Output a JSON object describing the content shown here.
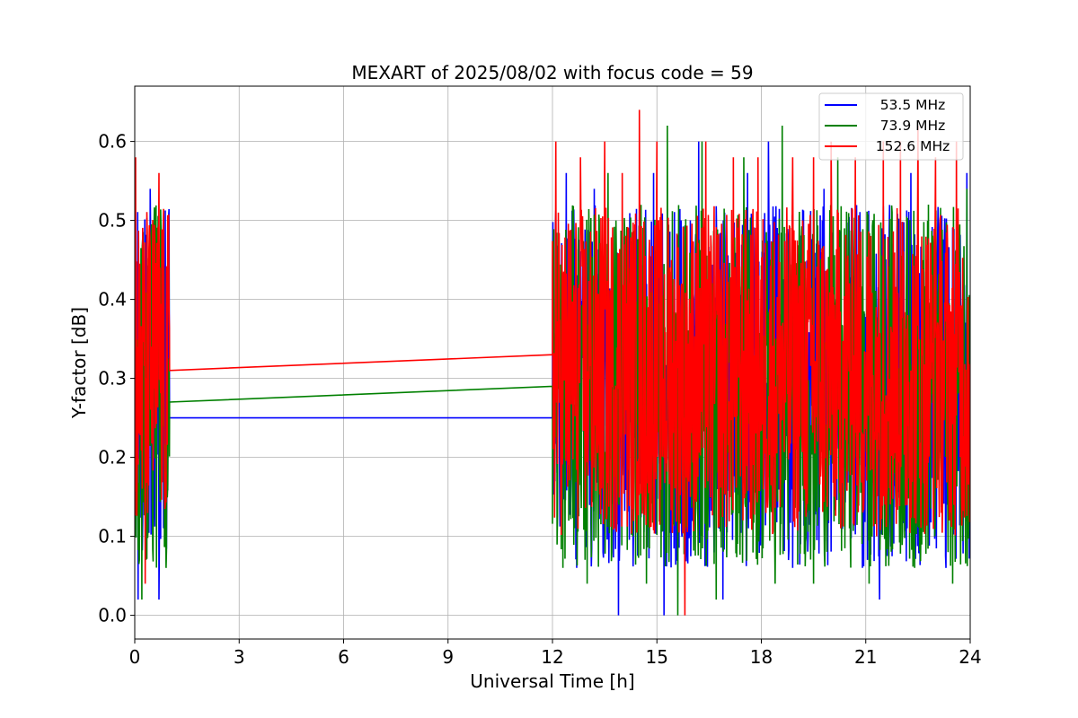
{
  "chart_data": {
    "type": "line",
    "title": "MEXART of 2025/08/02 with focus code = 59",
    "xlabel": "Universal Time [h]",
    "ylabel": "Y-factor [dB]",
    "xlim": [
      0,
      24
    ],
    "ylim": [
      -0.03,
      0.67
    ],
    "x_ticks": [
      0,
      3,
      6,
      9,
      12,
      15,
      18,
      21,
      24
    ],
    "x_tick_labels": [
      "0",
      "3",
      "6",
      "9",
      "12",
      "15",
      "18",
      "21",
      "24"
    ],
    "y_ticks": [
      0.0,
      0.1,
      0.2,
      0.3,
      0.4,
      0.5,
      0.6
    ],
    "y_tick_labels": [
      "0.0",
      "0.1",
      "0.2",
      "0.3",
      "0.4",
      "0.5",
      "0.6"
    ],
    "grid": true,
    "legend_position": "top-right",
    "segments": [
      {
        "x_start": 0,
        "x_end": 1
      },
      {
        "x_start": 12,
        "x_end": 24
      }
    ],
    "series": [
      {
        "name": "53.5 MHz",
        "color": "#0000ff",
        "typical_min": 0.06,
        "typical_max": 0.52,
        "segment1_spikes": [
          [
            0.45,
            0.54
          ],
          [
            0.1,
            0.02
          ],
          [
            0.7,
            0.02
          ]
        ],
        "segment2_spikes": [
          [
            12.4,
            0.56
          ],
          [
            12.7,
            0.06
          ],
          [
            13.2,
            0.54
          ],
          [
            13.9,
            0.0
          ],
          [
            14.9,
            0.56
          ],
          [
            15.2,
            0.0
          ],
          [
            16.2,
            0.6
          ],
          [
            16.9,
            0.02
          ],
          [
            17.6,
            0.56
          ],
          [
            18.2,
            0.6
          ],
          [
            18.9,
            0.06
          ],
          [
            19.8,
            0.54
          ],
          [
            20.9,
            0.06
          ],
          [
            21.4,
            0.02
          ],
          [
            22.3,
            0.56
          ],
          [
            23.3,
            0.06
          ],
          [
            23.9,
            0.56
          ]
        ],
        "gap_bridge": [
          [
            1.0,
            0.25
          ],
          [
            12.0,
            0.25
          ]
        ]
      },
      {
        "name": "73.9 MHz",
        "color": "#008000",
        "typical_min": 0.06,
        "typical_max": 0.52,
        "segment1_spikes": [
          [
            0.2,
            0.02
          ],
          [
            0.6,
            0.5
          ],
          [
            0.9,
            0.06
          ]
        ],
        "segment2_spikes": [
          [
            12.3,
            0.06
          ],
          [
            13.0,
            0.04
          ],
          [
            13.6,
            0.56
          ],
          [
            14.3,
            0.1
          ],
          [
            14.7,
            0.04
          ],
          [
            15.3,
            0.62
          ],
          [
            15.6,
            0.0
          ],
          [
            16.3,
            0.6
          ],
          [
            16.7,
            0.02
          ],
          [
            17.5,
            0.58
          ],
          [
            18.4,
            0.04
          ],
          [
            18.6,
            0.62
          ],
          [
            19.5,
            0.04
          ],
          [
            20.2,
            0.58
          ],
          [
            21.1,
            0.04
          ],
          [
            22.4,
            0.06
          ],
          [
            22.8,
            0.52
          ],
          [
            23.5,
            0.04
          ],
          [
            23.9,
            0.54
          ]
        ],
        "gap_bridge": [
          [
            1.0,
            0.27
          ],
          [
            12.0,
            0.29
          ]
        ]
      },
      {
        "name": "152.6 MHz",
        "color": "#ff0000",
        "typical_min": 0.1,
        "typical_max": 0.52,
        "segment1_spikes": [
          [
            0.03,
            0.58
          ],
          [
            0.3,
            0.04
          ],
          [
            0.7,
            0.56
          ]
        ],
        "segment2_spikes": [
          [
            12.1,
            0.6
          ],
          [
            12.8,
            0.58
          ],
          [
            13.5,
            0.6
          ],
          [
            14.0,
            0.56
          ],
          [
            14.5,
            0.64
          ],
          [
            15.0,
            0.6
          ],
          [
            15.8,
            0.0
          ],
          [
            16.4,
            0.6
          ],
          [
            17.2,
            0.58
          ],
          [
            17.9,
            0.58
          ],
          [
            18.9,
            0.58
          ],
          [
            19.5,
            0.58
          ],
          [
            20.0,
            0.6
          ],
          [
            20.7,
            0.58
          ],
          [
            21.5,
            0.6
          ],
          [
            22.0,
            0.6
          ],
          [
            22.5,
            0.62
          ],
          [
            23.0,
            0.58
          ],
          [
            23.6,
            0.6
          ]
        ],
        "gap_bridge": [
          [
            1.0,
            0.31
          ],
          [
            12.0,
            0.33
          ]
        ]
      }
    ]
  }
}
